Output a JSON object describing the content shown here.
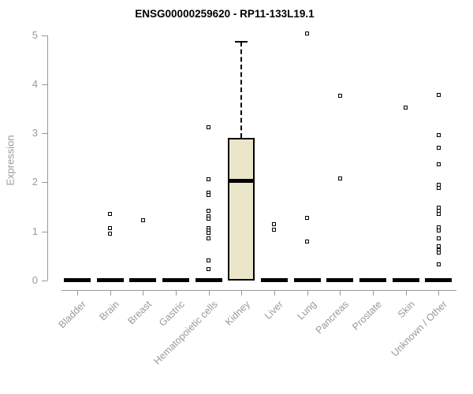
{
  "title": "ENSG00000259620 - RP11-133L19.1",
  "chart_data": {
    "type": "boxplot",
    "title": "ENSG00000259620 - RP11-133L19.1",
    "xlabel": "",
    "ylabel": "Expression",
    "ylim": [
      0,
      5
    ],
    "yticks": [
      0,
      1,
      2,
      3,
      4,
      5
    ],
    "grid": false,
    "legend": "none",
    "categories": [
      "Bladder",
      "Brain",
      "Breast",
      "Gastric",
      "Hematopoietic cells",
      "Kidney",
      "Liver",
      "Lung",
      "Pancreas",
      "Prostate",
      "Skin",
      "Unknown / Other"
    ],
    "boxes": [
      {
        "category": "Bladder",
        "q1": 0,
        "median": 0,
        "q3": 0,
        "whisker_low": 0,
        "whisker_high": 0,
        "outliers": []
      },
      {
        "category": "Brain",
        "q1": 0,
        "median": 0,
        "q3": 0,
        "whisker_low": 0,
        "whisker_high": 0,
        "outliers": [
          1.35,
          1.07,
          0.95
        ]
      },
      {
        "category": "Breast",
        "q1": 0,
        "median": 0,
        "q3": 0,
        "whisker_low": 0,
        "whisker_high": 0,
        "outliers": [
          1.22
        ]
      },
      {
        "category": "Gastric",
        "q1": 0,
        "median": 0,
        "q3": 0,
        "whisker_low": 0,
        "whisker_high": 0,
        "outliers": []
      },
      {
        "category": "Hematopoietic cells",
        "q1": 0,
        "median": 0,
        "q3": 0,
        "whisker_low": 0,
        "whisker_high": 0,
        "outliers": [
          3.13,
          2.06,
          1.79,
          1.74,
          1.41,
          1.31,
          1.26,
          1.07,
          1.01,
          0.96,
          0.85,
          0.41,
          0.23
        ]
      },
      {
        "category": "Kidney",
        "q1": 0,
        "median": 2.03,
        "q3": 2.9,
        "whisker_low": 0,
        "whisker_high": 4.87,
        "outliers": []
      },
      {
        "category": "Liver",
        "q1": 0,
        "median": 0,
        "q3": 0,
        "whisker_low": 0,
        "whisker_high": 0,
        "outliers": [
          1.15,
          1.04
        ]
      },
      {
        "category": "Lung",
        "q1": 0,
        "median": 0,
        "q3": 0,
        "whisker_low": 0,
        "whisker_high": 0,
        "outliers": [
          5.04,
          1.28,
          0.79
        ]
      },
      {
        "category": "Pancreas",
        "q1": 0,
        "median": 0,
        "q3": 0,
        "whisker_low": 0,
        "whisker_high": 0,
        "outliers": [
          3.76,
          2.08
        ]
      },
      {
        "category": "Prostate",
        "q1": 0,
        "median": 0,
        "q3": 0,
        "whisker_low": 0,
        "whisker_high": 0,
        "outliers": []
      },
      {
        "category": "Skin",
        "q1": 0,
        "median": 0,
        "q3": 0,
        "whisker_low": 0,
        "whisker_high": 0,
        "outliers": [
          3.52
        ]
      },
      {
        "category": "Unknown / Other",
        "q1": 0,
        "median": 0,
        "q3": 0,
        "whisker_low": 0,
        "whisker_high": 0,
        "outliers": [
          3.78,
          2.96,
          2.7,
          2.37,
          1.95,
          1.88,
          1.48,
          1.41,
          1.35,
          1.08,
          1.02,
          0.86,
          0.7,
          0.62,
          0.57,
          0.33
        ]
      }
    ],
    "colors": {
      "box_fill": "#EBE5C9",
      "box_border": "#000000",
      "median": "#000000",
      "outlier": "#000000",
      "axis": "#999999",
      "tick_label": "#999999",
      "title": "#000000",
      "background": "#FFFFFF"
    }
  }
}
